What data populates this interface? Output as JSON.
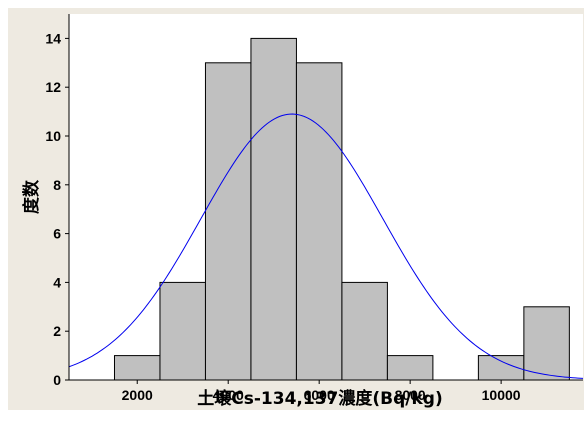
{
  "chart_data": {
    "type": "bar",
    "title": "",
    "xlabel": "土壌Cs-134,137濃度(Bq/kg)",
    "ylabel": "度数",
    "xlim": [
      500,
      11800
    ],
    "ylim": [
      0,
      15
    ],
    "x_ticks": [
      2000,
      4000,
      6000,
      8000,
      10000
    ],
    "y_ticks": [
      0,
      2,
      4,
      6,
      8,
      10,
      12,
      14
    ],
    "bin_width": 1000,
    "bins": [
      {
        "center": 2000,
        "count": 1
      },
      {
        "center": 3000,
        "count": 4
      },
      {
        "center": 4000,
        "count": 13
      },
      {
        "center": 5000,
        "count": 14
      },
      {
        "center": 6000,
        "count": 13
      },
      {
        "center": 7000,
        "count": 4
      },
      {
        "center": 8000,
        "count": 1
      },
      {
        "center": 10000,
        "count": 1
      },
      {
        "center": 11000,
        "count": 3
      }
    ],
    "fit_curve": {
      "type": "normal",
      "peak": 10.9,
      "mean": 5400,
      "sd": 2000
    },
    "grid": false,
    "legend": "none"
  },
  "colors": {
    "background": "#eeeae1",
    "plot_area": "#ffffff",
    "bar_fill": "#c0c0c0",
    "bar_stroke": "#000000",
    "curve": "#0000ee"
  }
}
